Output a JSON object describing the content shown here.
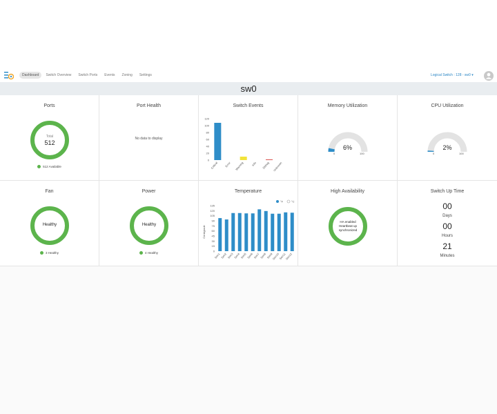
{
  "nav": {
    "tabs": [
      "Dashboard",
      "Switch Overview",
      "Switch Ports",
      "Events",
      "Zoning",
      "Settings"
    ],
    "active_index": 0,
    "logical_switch": "Logical Switch : 128 - sw0"
  },
  "page_title": "sw0",
  "colors": {
    "green": "#5cb44c",
    "blue": "#2e8dc8",
    "yellow": "#f2e33a",
    "red": "#d9534f",
    "gray": "#e3e3e3"
  },
  "cards": {
    "ports": {
      "title": "Ports",
      "total_label": "Total",
      "total": "512",
      "legend": "512 Available"
    },
    "port_health": {
      "title": "Port Health",
      "empty": "No data to display"
    },
    "switch_events": {
      "title": "Switch Events"
    },
    "memory": {
      "title": "Memory Utilization",
      "value_label": "6%",
      "value": 6,
      "min": "0",
      "max": "100"
    },
    "cpu": {
      "title": "CPU Utilization",
      "value_label": "2%",
      "value": 2,
      "min": "0",
      "max": "100"
    },
    "fan": {
      "title": "Fan",
      "status": "Healthy",
      "legend": "3 Healthy"
    },
    "power": {
      "title": "Power",
      "status": "Healthy",
      "legend": "4 Healthy"
    },
    "temperature": {
      "title": "Temperature"
    },
    "ha": {
      "title": "High Availability",
      "status_lines": [
        "HA enabled",
        "Heartbeat up",
        "synchronized"
      ]
    },
    "uptime": {
      "title": "Switch Up Time",
      "days": "00",
      "days_label": "Days",
      "hours": "00",
      "hours_label": "Hours",
      "minutes": "21",
      "minutes_label": "Minutes"
    }
  },
  "chart_data": [
    {
      "type": "bar",
      "title": "Switch Events",
      "categories": [
        "Critical",
        "Error",
        "Warning",
        "Info",
        "Debug",
        "Unknown"
      ],
      "values": [
        108,
        0,
        10,
        0,
        2,
        0
      ],
      "y_ticks": [
        0,
        20,
        40,
        60,
        80,
        100,
        120
      ],
      "ylim": [
        0,
        120
      ]
    },
    {
      "type": "bar",
      "title": "Temperature",
      "ylabel": "Centigrade",
      "legend": [
        "°F",
        "°C"
      ],
      "categories": [
        "Sen1",
        "Sen2",
        "Sen3",
        "Sen4",
        "Sen5",
        "Sen6",
        "Sen7",
        "Sen8",
        "Sen9",
        "Sen10",
        "Sen11",
        "Sen12"
      ],
      "values": [
        98,
        94,
        113,
        113,
        112,
        112,
        124,
        119,
        111,
        111,
        115,
        114
      ],
      "y_ticks": [
        0,
        15,
        30,
        45,
        60,
        75,
        90,
        105,
        120,
        135
      ],
      "ylim": [
        0,
        135
      ]
    }
  ]
}
